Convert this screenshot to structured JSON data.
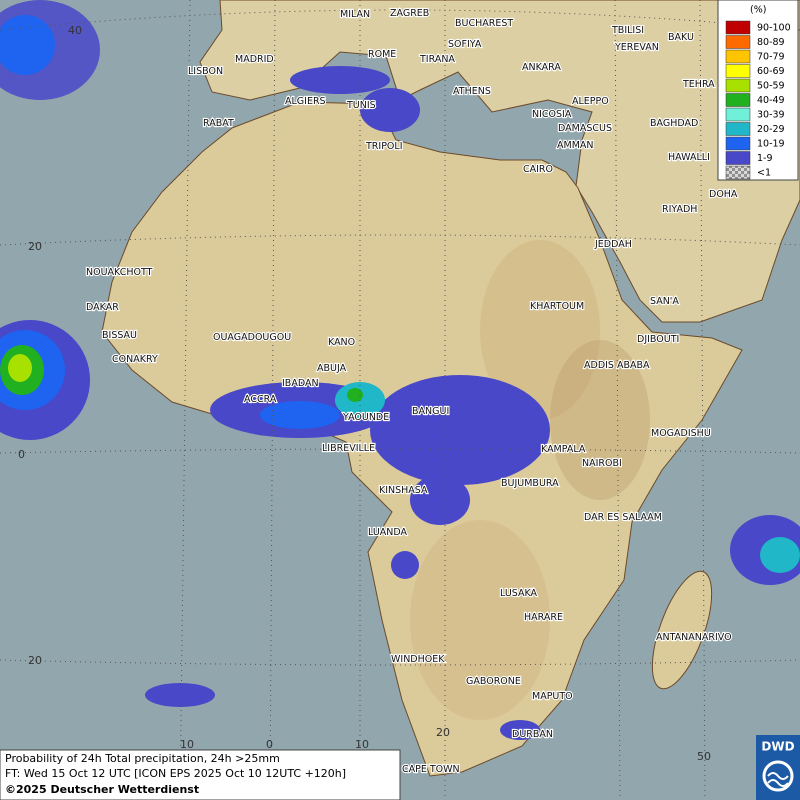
{
  "legend": {
    "title": "(%)",
    "items": [
      {
        "label": "90-100",
        "color": "#c00000"
      },
      {
        "label": "80-89",
        "color": "#ff6a00"
      },
      {
        "label": "70-79",
        "color": "#ffc400"
      },
      {
        "label": "60-69",
        "color": "#ffff00"
      },
      {
        "label": "50-59",
        "color": "#a8e000"
      },
      {
        "label": "40-49",
        "color": "#20b020"
      },
      {
        "label": "30-39",
        "color": "#70f0d8"
      },
      {
        "label": "20-29",
        "color": "#20b8c8"
      },
      {
        "label": "10-19",
        "color": "#1e64f0"
      },
      {
        "label": "1-9",
        "color": "#4848c8"
      },
      {
        "label": "<1",
        "color": "#b0b0b0"
      }
    ]
  },
  "latitude_labels": [
    "40",
    "20",
    "0",
    "20"
  ],
  "longitude_labels": [
    "10",
    "0",
    "10",
    "20",
    "50"
  ],
  "cities": [
    "MILAN",
    "ZAGREB",
    "BUCHAREST",
    "BAKU",
    "SOFIYA",
    "TBILISI",
    "YEREVAN",
    "MADRID",
    "ROME",
    "TIRANA",
    "ANKARA",
    "TEHRA",
    "LISBON",
    "ALGIERS",
    "TUNIS",
    "ATHENS",
    "ALEPPO",
    "RABAT",
    "NICOSIA",
    "BAGHDAD",
    "DAMASCUS",
    "AMMAN",
    "TRIPOLI",
    "HAWALLI",
    "CAIRO",
    "DOHA",
    "RIYADH",
    "JEDDAH",
    "NOUAKCHOTT",
    "SAN'A",
    "DAKAR",
    "KHARTOUM",
    "BISSAU",
    "OUAGADOUGOU",
    "KANO",
    "DJIBOUTI",
    "CONAKRY",
    "ABUJA",
    "ADDIS ABABA",
    "IBADAN",
    "ACCRA",
    "BANGUI",
    "YAOUNDE",
    "MOGADISHU",
    "LIBREVILLE",
    "KAMPALA",
    "NAIROBI",
    "BUJUMBURA",
    "KINSHASA",
    "DAR ES SALAAM",
    "LUANDA",
    "LUSAKA",
    "HARARE",
    "ANTANANARIVO",
    "WINDHOEK",
    "GABORONE",
    "MAPUTO",
    "DURBAN",
    "CAPE TOWN"
  ],
  "caption": {
    "line1": "Probability of 24h Total precipitation, 24h >25mm",
    "line2": "FT: Wed 15 Oct 12 UTC [ICON EPS 2025 Oct 10 12UTC +120h]",
    "line3": "©2025 Deutscher Wetterdienst"
  },
  "logo": "DWD"
}
